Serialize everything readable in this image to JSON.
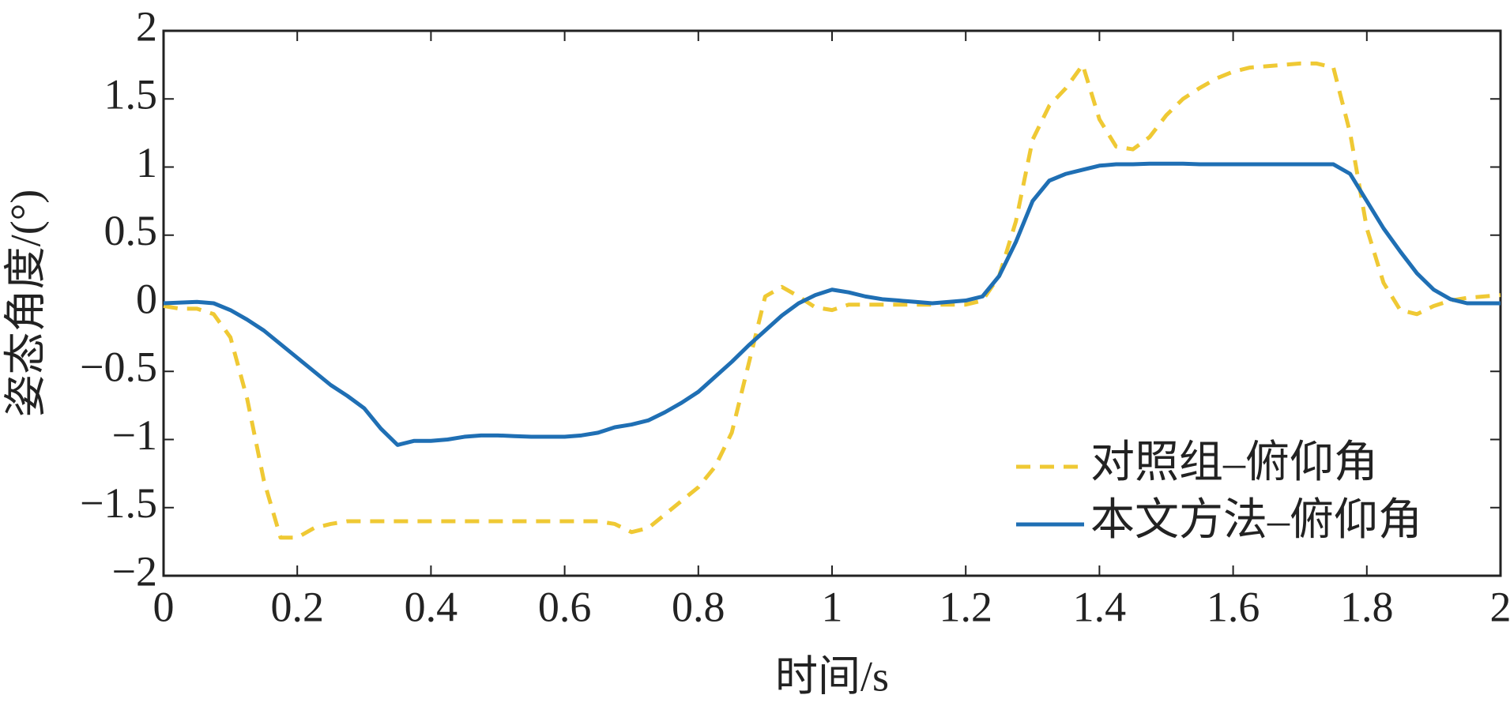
{
  "chart_data": {
    "type": "line",
    "xlabel": "时间/s",
    "ylabel": "姿态角度/(°)",
    "x": [
      0,
      0.025,
      0.05,
      0.075,
      0.1,
      0.125,
      0.15,
      0.175,
      0.2,
      0.225,
      0.25,
      0.275,
      0.3,
      0.325,
      0.35,
      0.375,
      0.4,
      0.425,
      0.45,
      0.475,
      0.5,
      0.525,
      0.55,
      0.575,
      0.6,
      0.625,
      0.65,
      0.675,
      0.7,
      0.725,
      0.75,
      0.775,
      0.8,
      0.825,
      0.85,
      0.875,
      0.9,
      0.925,
      0.95,
      0.975,
      1,
      1.025,
      1.05,
      1.075,
      1.1,
      1.125,
      1.15,
      1.175,
      1.2,
      1.225,
      1.25,
      1.275,
      1.3,
      1.325,
      1.35,
      1.375,
      1.4,
      1.425,
      1.45,
      1.475,
      1.5,
      1.525,
      1.55,
      1.575,
      1.6,
      1.625,
      1.65,
      1.675,
      1.7,
      1.725,
      1.75,
      1.775,
      1.8,
      1.825,
      1.85,
      1.875,
      1.9,
      1.925,
      1.95,
      1.975,
      2
    ],
    "series": [
      {
        "name": "对照组–俯仰角",
        "color": "#efc934",
        "style": "dashed",
        "values": [
          -0.02,
          -0.04,
          -0.04,
          -0.08,
          -0.25,
          -0.7,
          -1.3,
          -1.72,
          -1.72,
          -1.65,
          -1.62,
          -1.6,
          -1.6,
          -1.6,
          -1.6,
          -1.6,
          -1.6,
          -1.6,
          -1.6,
          -1.6,
          -1.6,
          -1.6,
          -1.6,
          -1.6,
          -1.6,
          -1.6,
          -1.6,
          -1.62,
          -1.68,
          -1.65,
          -1.55,
          -1.45,
          -1.35,
          -1.2,
          -0.95,
          -0.45,
          0.05,
          0.12,
          0.05,
          -0.03,
          -0.05,
          -0.01,
          -0.01,
          -0.01,
          -0.01,
          -0.01,
          -0.01,
          -0.01,
          -0.01,
          0.02,
          0.2,
          0.6,
          1.2,
          1.45,
          1.58,
          1.75,
          1.35,
          1.15,
          1.13,
          1.22,
          1.38,
          1.5,
          1.58,
          1.65,
          1.7,
          1.73,
          1.74,
          1.75,
          1.76,
          1.76,
          1.73,
          1.25,
          0.55,
          0.15,
          -0.05,
          -0.08,
          -0.02,
          0.02,
          0.04,
          0.05,
          0.06
        ]
      },
      {
        "name": "本文方法–俯仰角",
        "color": "#1f6fb4",
        "style": "solid",
        "values": [
          0,
          0.005,
          0.01,
          0,
          -0.05,
          -0.12,
          -0.2,
          -0.3,
          -0.4,
          -0.5,
          -0.6,
          -0.68,
          -0.77,
          -0.92,
          -1.04,
          -1.01,
          -1.01,
          -1.0,
          -0.98,
          -0.97,
          -0.97,
          -0.975,
          -0.98,
          -0.98,
          -0.98,
          -0.97,
          -0.95,
          -0.91,
          -0.89,
          -0.86,
          -0.8,
          -0.73,
          -0.65,
          -0.54,
          -0.43,
          -0.31,
          -0.2,
          -0.09,
          0,
          0.06,
          0.1,
          0.08,
          0.05,
          0.03,
          0.02,
          0.01,
          0,
          0.01,
          0.02,
          0.05,
          0.2,
          0.45,
          0.75,
          0.9,
          0.95,
          0.98,
          1.01,
          1.02,
          1.02,
          1.025,
          1.025,
          1.025,
          1.02,
          1.02,
          1.02,
          1.02,
          1.02,
          1.02,
          1.02,
          1.02,
          1.02,
          0.95,
          0.75,
          0.55,
          0.38,
          0.22,
          0.1,
          0.03,
          0,
          0,
          0
        ]
      }
    ],
    "xlim": [
      0,
      2
    ],
    "xticks": [
      0,
      0.2,
      0.4,
      0.6,
      0.8,
      1,
      1.2,
      1.4,
      1.6,
      1.8,
      2
    ],
    "ylim": [
      -2,
      2
    ],
    "yticks": [
      {
        "value": -2,
        "label": "−2"
      },
      {
        "value": -1.5,
        "label": "−1.5"
      },
      {
        "value": -1,
        "label": "−1"
      },
      {
        "value": -0.5,
        "label": "−0.5"
      },
      0,
      0.5,
      1,
      1.5,
      2
    ],
    "grid": false,
    "legend": "lower right"
  }
}
